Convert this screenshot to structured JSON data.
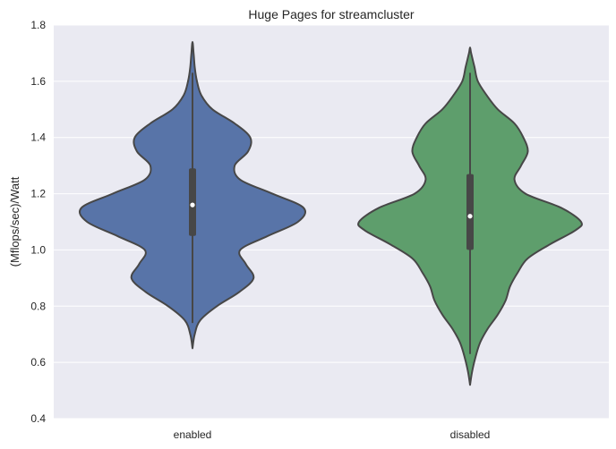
{
  "chart_data": {
    "type": "violin",
    "title": "Huge Pages for streamcluster",
    "xlabel": "",
    "ylabel": "(Mflops/sec)/Watt",
    "ylim": [
      0.4,
      1.8
    ],
    "yticks": [
      "0.4",
      "0.6",
      "0.8",
      "1.0",
      "1.2",
      "1.4",
      "1.6",
      "1.8"
    ],
    "categories": [
      "enabled",
      "disabled"
    ],
    "grid": true,
    "colors": {
      "background": "#EAEAF2",
      "grid": "#FFFFFF",
      "outline": "#474747",
      "enabled": "#5874A8",
      "disabled": "#5E9E6C"
    },
    "violins": [
      {
        "name": "enabled",
        "color": "#5874A8",
        "min": 0.65,
        "max": 1.74,
        "q1": 1.05,
        "median": 1.16,
        "q3": 1.29,
        "whisker_low": 0.74,
        "whisker_high": 1.63,
        "density": [
          [
            0.65,
            0.0
          ],
          [
            0.7,
            0.02
          ],
          [
            0.75,
            0.07
          ],
          [
            0.8,
            0.22
          ],
          [
            0.85,
            0.42
          ],
          [
            0.9,
            0.55
          ],
          [
            0.95,
            0.48
          ],
          [
            1.0,
            0.43
          ],
          [
            1.05,
            0.68
          ],
          [
            1.1,
            0.95
          ],
          [
            1.15,
            1.0
          ],
          [
            1.2,
            0.72
          ],
          [
            1.25,
            0.43
          ],
          [
            1.3,
            0.38
          ],
          [
            1.35,
            0.5
          ],
          [
            1.4,
            0.52
          ],
          [
            1.45,
            0.38
          ],
          [
            1.5,
            0.18
          ],
          [
            1.55,
            0.08
          ],
          [
            1.6,
            0.04
          ],
          [
            1.65,
            0.02
          ],
          [
            1.7,
            0.01
          ],
          [
            1.74,
            0.0
          ]
        ]
      },
      {
        "name": "disabled",
        "color": "#5E9E6C",
        "min": 0.52,
        "max": 1.72,
        "q1": 1.0,
        "median": 1.12,
        "q3": 1.27,
        "whisker_low": 0.63,
        "whisker_high": 1.63,
        "density": [
          [
            0.52,
            0.0
          ],
          [
            0.57,
            0.02
          ],
          [
            0.62,
            0.05
          ],
          [
            0.67,
            0.09
          ],
          [
            0.72,
            0.16
          ],
          [
            0.77,
            0.25
          ],
          [
            0.82,
            0.32
          ],
          [
            0.87,
            0.36
          ],
          [
            0.92,
            0.43
          ],
          [
            0.97,
            0.52
          ],
          [
            1.02,
            0.72
          ],
          [
            1.07,
            0.95
          ],
          [
            1.1,
            1.0
          ],
          [
            1.15,
            0.82
          ],
          [
            1.2,
            0.5
          ],
          [
            1.25,
            0.4
          ],
          [
            1.3,
            0.46
          ],
          [
            1.35,
            0.52
          ],
          [
            1.4,
            0.48
          ],
          [
            1.45,
            0.4
          ],
          [
            1.5,
            0.25
          ],
          [
            1.55,
            0.15
          ],
          [
            1.6,
            0.07
          ],
          [
            1.65,
            0.04
          ],
          [
            1.7,
            0.01
          ],
          [
            1.72,
            0.0
          ]
        ]
      }
    ]
  }
}
